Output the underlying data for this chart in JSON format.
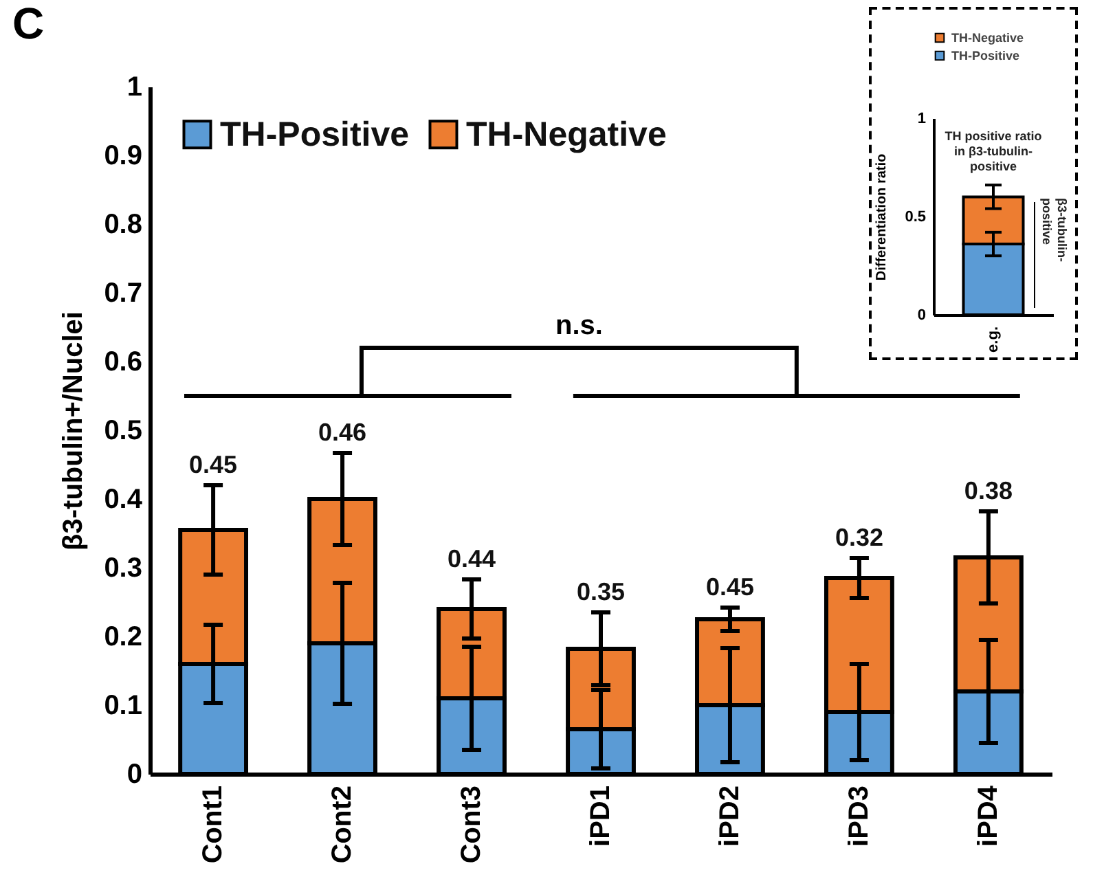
{
  "chart_data": [
    {
      "type": "bar",
      "title": "C",
      "ylabel": "β3-tubulin+/Nuclei",
      "stacked": true,
      "categories": [
        "Cont1",
        "Cont2",
        "Cont3",
        "iPD1",
        "iPD2",
        "iPD3",
        "iPD4"
      ],
      "series": [
        {
          "name": "TH-Positive",
          "color": "#5b9bd5",
          "values": [
            0.16,
            0.19,
            0.11,
            0.065,
            0.1,
            0.09,
            0.12
          ],
          "errors": [
            0.057,
            0.088,
            0.075,
            0.057,
            0.083,
            0.07,
            0.075
          ]
        },
        {
          "name": "TH-Negative",
          "color": "#ed7d31",
          "values": [
            0.195,
            0.21,
            0.13,
            0.117,
            0.125,
            0.195,
            0.195
          ],
          "errors": [
            0.065,
            0.067,
            0.043,
            0.053,
            0.017,
            0.029,
            0.067
          ]
        }
      ],
      "ylim": [
        0,
        1
      ],
      "yticks": [
        0,
        0.1,
        0.2,
        0.3,
        0.4,
        0.5,
        0.6,
        0.7,
        0.8,
        0.9,
        1
      ],
      "grid": false,
      "legend": "top left",
      "annotations": [
        "n.s.",
        {
          "text": "0.45",
          "x": "Cont1",
          "y": 0.42
        },
        {
          "text": "0.46",
          "x": "Cont2",
          "y": 0.467
        },
        {
          "text": "0.44",
          "x": "Cont3",
          "y": 0.283
        },
        {
          "text": "0.35",
          "x": "iPD1",
          "y": 0.235
        },
        {
          "text": "0.45",
          "x": "iPD2",
          "y": 0.242
        },
        {
          "text": "0.32",
          "x": "iPD3",
          "y": 0.314
        },
        {
          "text": "0.38",
          "x": "iPD4",
          "y": 0.382
        }
      ]
    },
    {
      "type": "bar",
      "ylabel": "Differentiation ratio",
      "stacked": true,
      "categories": [
        "e.g."
      ],
      "series": [
        {
          "name": "TH-Positive",
          "color": "#5b9bd5",
          "values": [
            0.36
          ],
          "errors": [
            0.06
          ]
        },
        {
          "name": "TH-Negative",
          "color": "#ed7d31",
          "values": [
            0.24
          ],
          "errors": [
            0.06
          ]
        }
      ],
      "ylim": [
        0,
        1
      ],
      "yticks": [
        0,
        0.5,
        1
      ],
      "grid": false,
      "legend": "top",
      "annotations": [
        "TH positive ratio in β3-tubulin-positive",
        "β3-tubulin-positive"
      ]
    }
  ]
}
